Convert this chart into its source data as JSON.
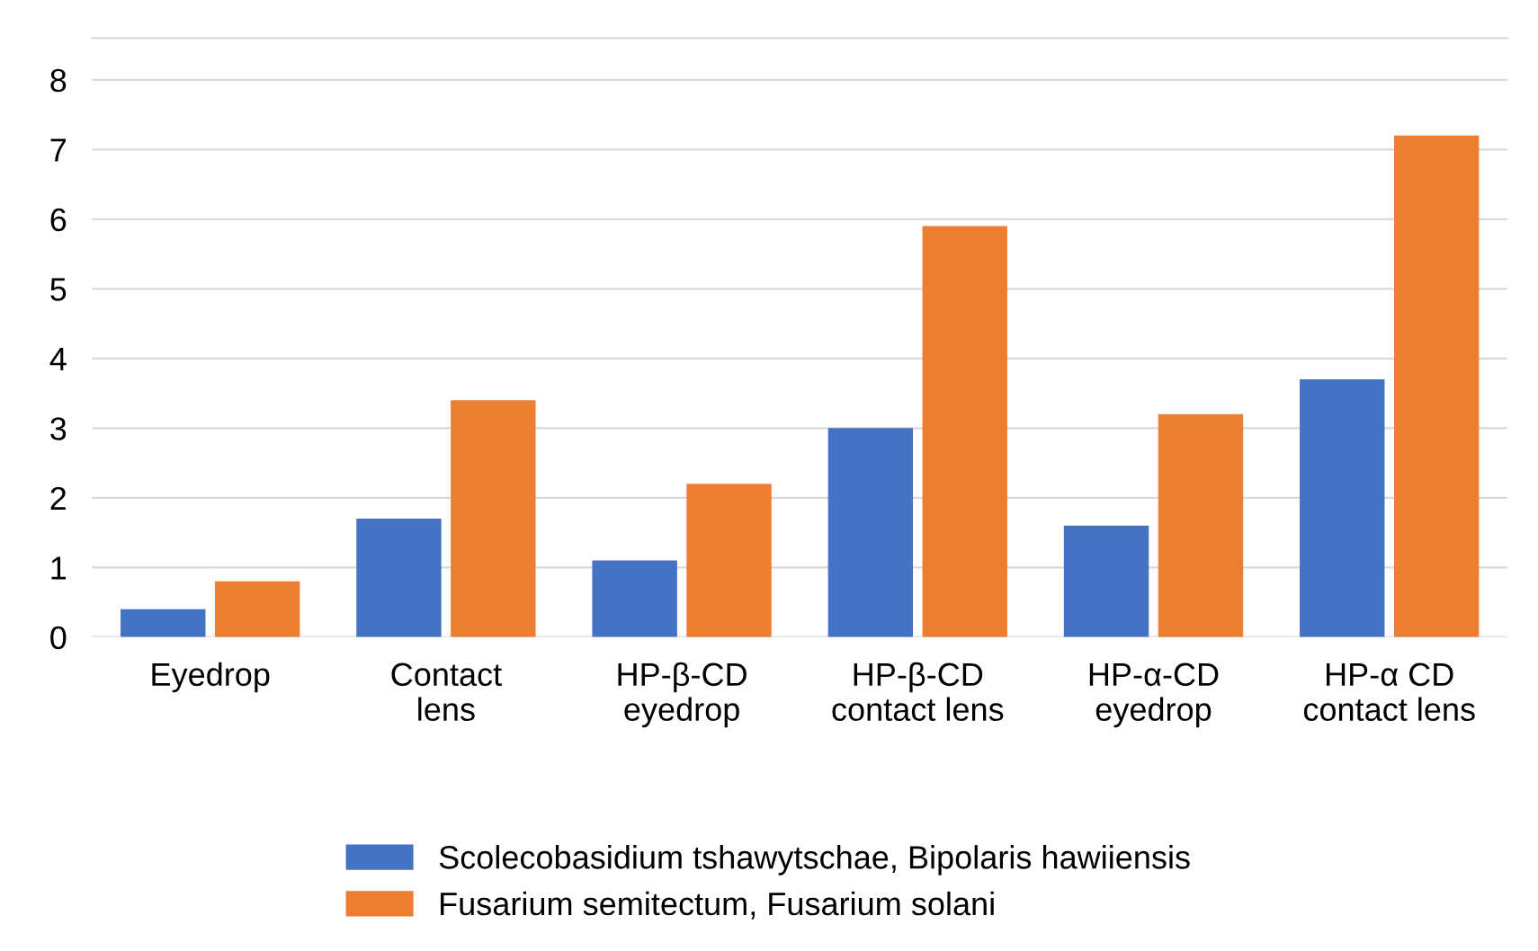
{
  "chart_data": {
    "type": "bar",
    "categories": [
      "Eyedrop",
      "Contact\nlens",
      "HP-β-CD\neyedrop",
      "HP-β-CD\ncontact lens",
      "HP-α-CD\neyedrop",
      "HP-α CD\ncontact lens"
    ],
    "series": [
      {
        "name": "Scolecobasidium tshawytschae, Bipolaris hawiiensis",
        "color": "#4472c4",
        "values": [
          0.4,
          1.7,
          1.1,
          3.0,
          1.6,
          3.7
        ]
      },
      {
        "name": "Fusarium semitectum, Fusarium solani",
        "color": "#ed7d31",
        "values": [
          0.8,
          3.4,
          2.2,
          5.9,
          3.2,
          7.2
        ]
      }
    ],
    "ylim": [
      0,
      8.6
    ],
    "yticks": [
      0,
      1,
      2,
      3,
      4,
      5,
      6,
      7,
      8
    ],
    "grid": "y",
    "legend": "bottom"
  }
}
